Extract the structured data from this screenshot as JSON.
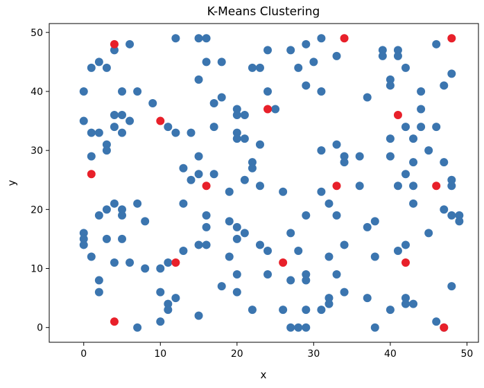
{
  "chart_data": {
    "type": "scatter",
    "title": "K-Means Clustering",
    "xlabel": "x",
    "ylabel": "y",
    "xlim": [
      -4.5,
      51.5
    ],
    "ylim": [
      -2.5,
      51.5
    ],
    "xticks": [
      0,
      10,
      20,
      30,
      40,
      50
    ],
    "yticks": [
      0,
      10,
      20,
      30,
      40,
      50
    ],
    "grid": false,
    "colors": {
      "points": "#3b75af",
      "centroids": "#e8202a"
    },
    "series": [
      {
        "role": "points",
        "points": [
          [
            0,
            40
          ],
          [
            0,
            35
          ],
          [
            0,
            16
          ],
          [
            0,
            15
          ],
          [
            0,
            14
          ],
          [
            1,
            44
          ],
          [
            1,
            33
          ],
          [
            1,
            29
          ],
          [
            1,
            12
          ],
          [
            2,
            45
          ],
          [
            2,
            33
          ],
          [
            2,
            19
          ],
          [
            2,
            8
          ],
          [
            2,
            6
          ],
          [
            3,
            44
          ],
          [
            3,
            31
          ],
          [
            3,
            30
          ],
          [
            3,
            20
          ],
          [
            3,
            15
          ],
          [
            4,
            47
          ],
          [
            4,
            36
          ],
          [
            4,
            34
          ],
          [
            4,
            21
          ],
          [
            4,
            11
          ],
          [
            5,
            40
          ],
          [
            5,
            36
          ],
          [
            5,
            33
          ],
          [
            5,
            20
          ],
          [
            5,
            19
          ],
          [
            5,
            15
          ],
          [
            6,
            48
          ],
          [
            6,
            35
          ],
          [
            6,
            11
          ],
          [
            7,
            40
          ],
          [
            7,
            21
          ],
          [
            7,
            0
          ],
          [
            8,
            18
          ],
          [
            8,
            10
          ],
          [
            9,
            38
          ],
          [
            10,
            10
          ],
          [
            10,
            6
          ],
          [
            10,
            1
          ],
          [
            11,
            34
          ],
          [
            11,
            11
          ],
          [
            11,
            4
          ],
          [
            11,
            3
          ],
          [
            12,
            49
          ],
          [
            12,
            33
          ],
          [
            12,
            5
          ],
          [
            13,
            27
          ],
          [
            13,
            21
          ],
          [
            13,
            13
          ],
          [
            14,
            33
          ],
          [
            14,
            25
          ],
          [
            15,
            49
          ],
          [
            15,
            42
          ],
          [
            15,
            29
          ],
          [
            15,
            26
          ],
          [
            15,
            14
          ],
          [
            15,
            2
          ],
          [
            16,
            49
          ],
          [
            16,
            45
          ],
          [
            16,
            19
          ],
          [
            16,
            17
          ],
          [
            16,
            14
          ],
          [
            17,
            38
          ],
          [
            17,
            34
          ],
          [
            17,
            26
          ],
          [
            18,
            45
          ],
          [
            18,
            39
          ],
          [
            18,
            7
          ],
          [
            19,
            23
          ],
          [
            19,
            18
          ],
          [
            19,
            12
          ],
          [
            20,
            37
          ],
          [
            20,
            36
          ],
          [
            20,
            33
          ],
          [
            20,
            32
          ],
          [
            20,
            17
          ],
          [
            20,
            15
          ],
          [
            20,
            9
          ],
          [
            20,
            6
          ],
          [
            21,
            36
          ],
          [
            21,
            32
          ],
          [
            21,
            25
          ],
          [
            21,
            16
          ],
          [
            22,
            44
          ],
          [
            22,
            28
          ],
          [
            22,
            27
          ],
          [
            22,
            3
          ],
          [
            23,
            44
          ],
          [
            23,
            31
          ],
          [
            23,
            24
          ],
          [
            23,
            14
          ],
          [
            24,
            47
          ],
          [
            24,
            40
          ],
          [
            24,
            13
          ],
          [
            24,
            9
          ],
          [
            25,
            37
          ],
          [
            26,
            23
          ],
          [
            26,
            3
          ],
          [
            27,
            47
          ],
          [
            27,
            16
          ],
          [
            27,
            8
          ],
          [
            27,
            0
          ],
          [
            28,
            44
          ],
          [
            28,
            13
          ],
          [
            28,
            0
          ],
          [
            29,
            48
          ],
          [
            29,
            41
          ],
          [
            29,
            19
          ],
          [
            29,
            9
          ],
          [
            29,
            8
          ],
          [
            29,
            3
          ],
          [
            29,
            0
          ],
          [
            30,
            45
          ],
          [
            31,
            49
          ],
          [
            31,
            40
          ],
          [
            31,
            30
          ],
          [
            31,
            23
          ],
          [
            31,
            3
          ],
          [
            32,
            21
          ],
          [
            32,
            12
          ],
          [
            32,
            5
          ],
          [
            32,
            4
          ],
          [
            33,
            46
          ],
          [
            33,
            31
          ],
          [
            33,
            19
          ],
          [
            33,
            9
          ],
          [
            34,
            29
          ],
          [
            34,
            28
          ],
          [
            34,
            14
          ],
          [
            34,
            6
          ],
          [
            36,
            29
          ],
          [
            36,
            24
          ],
          [
            37,
            39
          ],
          [
            37,
            17
          ],
          [
            37,
            5
          ],
          [
            38,
            18
          ],
          [
            38,
            12
          ],
          [
            38,
            0
          ],
          [
            39,
            47
          ],
          [
            39,
            46
          ],
          [
            40,
            42
          ],
          [
            40,
            41
          ],
          [
            40,
            32
          ],
          [
            40,
            29
          ],
          [
            40,
            3
          ],
          [
            41,
            47
          ],
          [
            41,
            46
          ],
          [
            41,
            24
          ],
          [
            41,
            13
          ],
          [
            42,
            44
          ],
          [
            42,
            34
          ],
          [
            42,
            26
          ],
          [
            42,
            14
          ],
          [
            42,
            5
          ],
          [
            42,
            4
          ],
          [
            43,
            32
          ],
          [
            43,
            28
          ],
          [
            43,
            24
          ],
          [
            43,
            21
          ],
          [
            43,
            4
          ],
          [
            44,
            40
          ],
          [
            44,
            37
          ],
          [
            44,
            34
          ],
          [
            45,
            30
          ],
          [
            45,
            16
          ],
          [
            46,
            48
          ],
          [
            46,
            34
          ],
          [
            46,
            1
          ],
          [
            47,
            41
          ],
          [
            47,
            28
          ],
          [
            47,
            20
          ],
          [
            47,
            0
          ],
          [
            48,
            43
          ],
          [
            48,
            25
          ],
          [
            48,
            24
          ],
          [
            48,
            19
          ],
          [
            48,
            7
          ],
          [
            49,
            19
          ],
          [
            49,
            18
          ]
        ]
      },
      {
        "role": "centroids",
        "points": [
          [
            4,
            48
          ],
          [
            34,
            49
          ],
          [
            48,
            49
          ],
          [
            24,
            37
          ],
          [
            41,
            36
          ],
          [
            10,
            35
          ],
          [
            1,
            26
          ],
          [
            16,
            24
          ],
          [
            33,
            24
          ],
          [
            46,
            24
          ],
          [
            12,
            11
          ],
          [
            26,
            11
          ],
          [
            42,
            11
          ],
          [
            4,
            1
          ],
          [
            47,
            0
          ]
        ]
      }
    ]
  }
}
